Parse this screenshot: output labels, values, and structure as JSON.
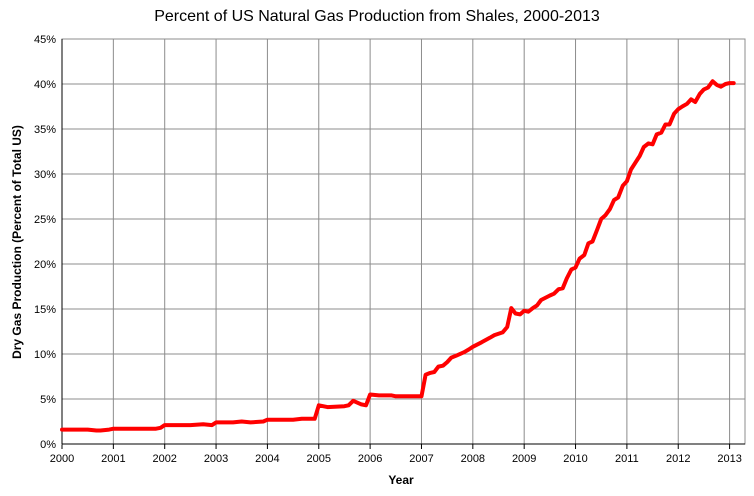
{
  "chart_data": {
    "type": "line",
    "title": "Percent of US Natural Gas Production from Shales, 2000-2013",
    "xlabel": "Year",
    "ylabel": "Dry Gas Production (Percent of Total US)",
    "xlim": [
      2000,
      2013.3
    ],
    "ylim": [
      0,
      45
    ],
    "x_ticks": [
      2000,
      2001,
      2002,
      2003,
      2004,
      2005,
      2006,
      2007,
      2008,
      2009,
      2010,
      2011,
      2012,
      2013
    ],
    "x_tick_labels": [
      "2000",
      "2001",
      "2002",
      "2003",
      "2004",
      "2005",
      "2006",
      "2007",
      "2008",
      "2009",
      "2010",
      "2011",
      "2012",
      "2013"
    ],
    "y_ticks": [
      0,
      5,
      10,
      15,
      20,
      25,
      30,
      35,
      40,
      45
    ],
    "y_tick_labels": [
      "0%",
      "5%",
      "10%",
      "15%",
      "20%",
      "25%",
      "30%",
      "35%",
      "40%",
      "45%"
    ],
    "grid": true,
    "legend": "none",
    "line_color": "#ff0000",
    "series": [
      {
        "x": [
          2000.0,
          2000.5,
          2000.67,
          2000.75,
          2000.92,
          2001.0,
          2001.5,
          2001.83,
          2001.92,
          2002.0,
          2002.5,
          2002.75,
          2002.92,
          2003.0,
          2003.33,
          2003.5,
          2003.67,
          2003.92,
          2004.0,
          2004.5,
          2004.67,
          2004.92,
          2005.0,
          2005.17,
          2005.5,
          2005.58,
          2005.67,
          2005.83,
          2005.92,
          2006.0,
          2006.17,
          2006.42,
          2006.5,
          2006.92,
          2007.0,
          2007.08,
          2007.17,
          2007.25,
          2007.33,
          2007.42,
          2007.5,
          2007.58,
          2007.67,
          2007.83,
          2007.92,
          2008.0,
          2008.17,
          2008.33,
          2008.42,
          2008.58,
          2008.67,
          2008.75,
          2008.83,
          2008.92,
          2009.0,
          2009.08,
          2009.17,
          2009.25,
          2009.33,
          2009.5,
          2009.58,
          2009.67,
          2009.75,
          2009.83,
          2009.92,
          2010.0,
          2010.08,
          2010.17,
          2010.25,
          2010.33,
          2010.42,
          2010.5,
          2010.58,
          2010.67,
          2010.75,
          2010.83,
          2010.92,
          2011.0,
          2011.08,
          2011.17,
          2011.25,
          2011.33,
          2011.42,
          2011.5,
          2011.58,
          2011.67,
          2011.75,
          2011.83,
          2011.92,
          2012.0,
          2012.08,
          2012.17,
          2012.25,
          2012.33,
          2012.42,
          2012.5,
          2012.58,
          2012.67,
          2012.75,
          2012.83,
          2012.92,
          2013.0,
          2013.08
        ],
        "y": [
          1.6,
          1.6,
          1.5,
          1.5,
          1.6,
          1.7,
          1.7,
          1.7,
          1.8,
          2.1,
          2.1,
          2.2,
          2.1,
          2.4,
          2.4,
          2.5,
          2.4,
          2.5,
          2.7,
          2.7,
          2.8,
          2.8,
          4.3,
          4.1,
          4.2,
          4.3,
          4.8,
          4.4,
          4.3,
          5.5,
          5.4,
          5.4,
          5.3,
          5.3,
          5.3,
          7.7,
          7.9,
          8.0,
          8.6,
          8.7,
          9.1,
          9.6,
          9.8,
          10.2,
          10.5,
          10.8,
          11.3,
          11.8,
          12.1,
          12.4,
          13.0,
          15.1,
          14.5,
          14.4,
          14.8,
          14.7,
          15.1,
          15.4,
          16.0,
          16.5,
          16.7,
          17.2,
          17.3,
          18.4,
          19.4,
          19.6,
          20.6,
          21.0,
          22.3,
          22.5,
          23.8,
          25.0,
          25.4,
          26.1,
          27.1,
          27.4,
          28.7,
          29.2,
          30.5,
          31.3,
          32.0,
          33.0,
          33.4,
          33.3,
          34.4,
          34.6,
          35.5,
          35.5,
          36.7,
          37.2,
          37.5,
          37.8,
          38.3,
          38.0,
          38.9,
          39.4,
          39.6,
          40.3,
          39.9,
          39.7,
          40.0,
          40.1,
          40.1
        ]
      }
    ]
  }
}
